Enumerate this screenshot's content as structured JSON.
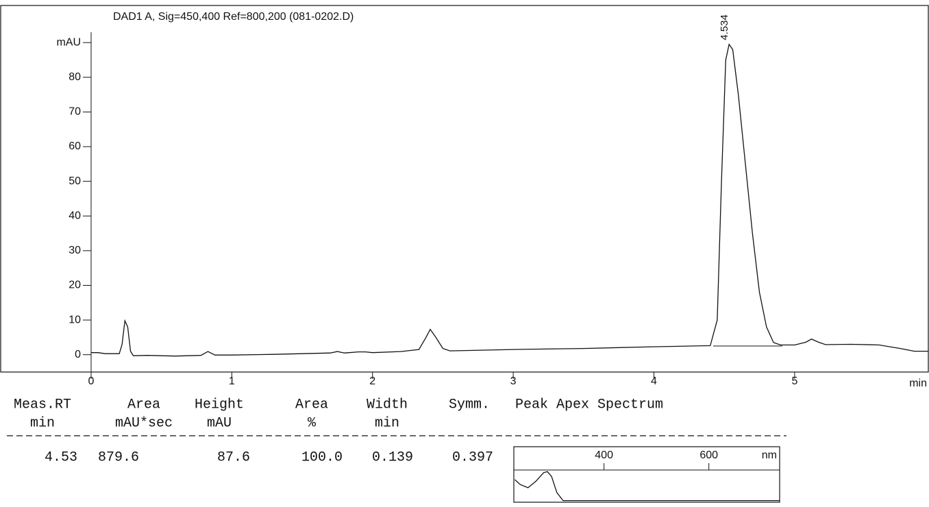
{
  "chart_data": [
    {
      "type": "line",
      "title": "DAD1 A, Sig=450,400 Ref=800,200 (081-0202.D)",
      "xlabel": "min",
      "x": [
        0,
        0.05,
        0.1,
        0.2,
        0.22,
        0.24,
        0.26,
        0.28,
        0.3,
        0.4,
        0.6,
        0.78,
        0.83,
        0.88,
        1.0,
        1.3,
        1.6,
        1.7,
        1.75,
        1.8,
        1.9,
        1.95,
        2.0,
        2.2,
        2.33,
        2.38,
        2.41,
        2.45,
        2.5,
        2.55,
        3.0,
        3.5,
        4.0,
        4.4,
        4.45,
        4.48,
        4.51,
        4.534,
        4.56,
        4.6,
        4.65,
        4.7,
        4.75,
        4.8,
        4.85,
        4.9,
        5.0,
        5.08,
        5.12,
        5.17,
        5.22,
        5.4,
        5.6,
        5.75,
        5.85,
        5.95
      ],
      "series": [
        {
          "color": "#111111",
          "values": [
            0.6,
            0.6,
            0.3,
            0.3,
            3,
            9.8,
            8,
            1,
            -0.3,
            -0.2,
            -0.4,
            -0.2,
            0.9,
            -0.1,
            -0.1,
            0.1,
            0.4,
            0.5,
            0.9,
            0.5,
            0.8,
            0.8,
            0.6,
            0.9,
            1.5,
            5,
            7.3,
            5,
            1.8,
            1.1,
            1.5,
            1.8,
            2.3,
            2.6,
            10,
            50,
            85,
            89.5,
            88,
            75,
            55,
            35,
            18,
            8,
            3.5,
            2.8,
            2.8,
            3.6,
            4.5,
            3.6,
            2.9,
            3.0,
            2.8,
            1.8,
            1.0,
            1.0
          ]
        }
      ],
      "annotations": [
        {
          "text": "4.534",
          "x": 4.534,
          "y": 89.5
        }
      ],
      "xlim": [
        0,
        5.95
      ],
      "xticks": [
        0,
        1,
        2,
        3,
        4,
        5
      ],
      "ylim": [
        -5,
        93
      ],
      "yticks": [
        0,
        10,
        20,
        30,
        40,
        50,
        60,
        70,
        80,
        {
          "value": 90,
          "label": "mAU"
        }
      ]
    },
    {
      "type": "line",
      "xlabel": "nm",
      "x": [
        230,
        240,
        255,
        270,
        285,
        292,
        300,
        310,
        322,
        400,
        600,
        735
      ],
      "series": [
        {
          "color": "#111111",
          "values": [
            70,
            55,
            45,
            65,
            92,
            95,
            80,
            30,
            5,
            5,
            5,
            5
          ]
        }
      ],
      "xlim": [
        228,
        735
      ],
      "xticks": [
        400,
        600
      ],
      "ylim": [
        0,
        100
      ]
    }
  ],
  "table": {
    "columns": [
      {
        "name": "Meas.RT",
        "unit": "min"
      },
      {
        "name": "Area",
        "unit": "mAU*sec"
      },
      {
        "name": "Height",
        "unit": "mAU"
      },
      {
        "name": "Area",
        "unit": "%"
      },
      {
        "name": "Width",
        "unit": "min"
      },
      {
        "name": "Symm."
      },
      {
        "name": "Peak Apex Spectrum"
      }
    ],
    "rows": [
      [
        "4.53",
        "879.6",
        "87.6",
        "100.0",
        "0.139",
        "0.397"
      ]
    ]
  }
}
